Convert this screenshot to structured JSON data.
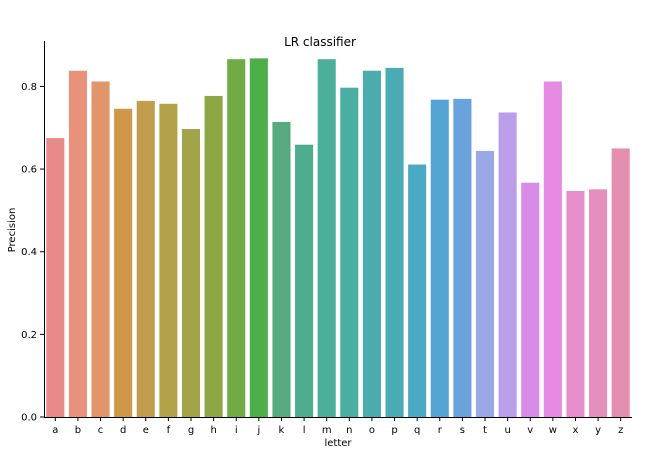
{
  "chart_data": {
    "type": "bar",
    "title": "LR classifier",
    "xlabel": "letter",
    "ylabel": "Precision",
    "categories": [
      "a",
      "b",
      "c",
      "d",
      "e",
      "f",
      "g",
      "h",
      "i",
      "j",
      "k",
      "l",
      "m",
      "n",
      "o",
      "p",
      "q",
      "r",
      "s",
      "t",
      "u",
      "v",
      "w",
      "x",
      "y",
      "z"
    ],
    "values": [
      0.675,
      0.838,
      0.812,
      0.746,
      0.765,
      0.758,
      0.697,
      0.777,
      0.866,
      0.868,
      0.714,
      0.659,
      0.866,
      0.797,
      0.838,
      0.845,
      0.611,
      0.768,
      0.77,
      0.644,
      0.737,
      0.567,
      0.812,
      0.547,
      0.551,
      0.65
    ],
    "ylim": [
      0,
      0.91
    ],
    "yticks": [
      "0.0",
      "0.2",
      "0.4",
      "0.6",
      "0.8"
    ],
    "grid": false,
    "colors": [
      "#e8898a",
      "#e8927b",
      "#e0956a",
      "#cf9849",
      "#c29d4b",
      "#b3a24a",
      "#a3a34a",
      "#8da744",
      "#70ab45",
      "#4daf4a",
      "#55ab7d",
      "#4fad8f",
      "#4caf9a",
      "#4aaea3",
      "#4aadac",
      "#4aabb5",
      "#4aa9c4",
      "#55a5d4",
      "#6aa2dc",
      "#9aa8e6",
      "#bb9ee9",
      "#d78de8",
      "#e68ae3",
      "#e68ecb",
      "#e58fbd",
      "#e58fb0"
    ]
  }
}
